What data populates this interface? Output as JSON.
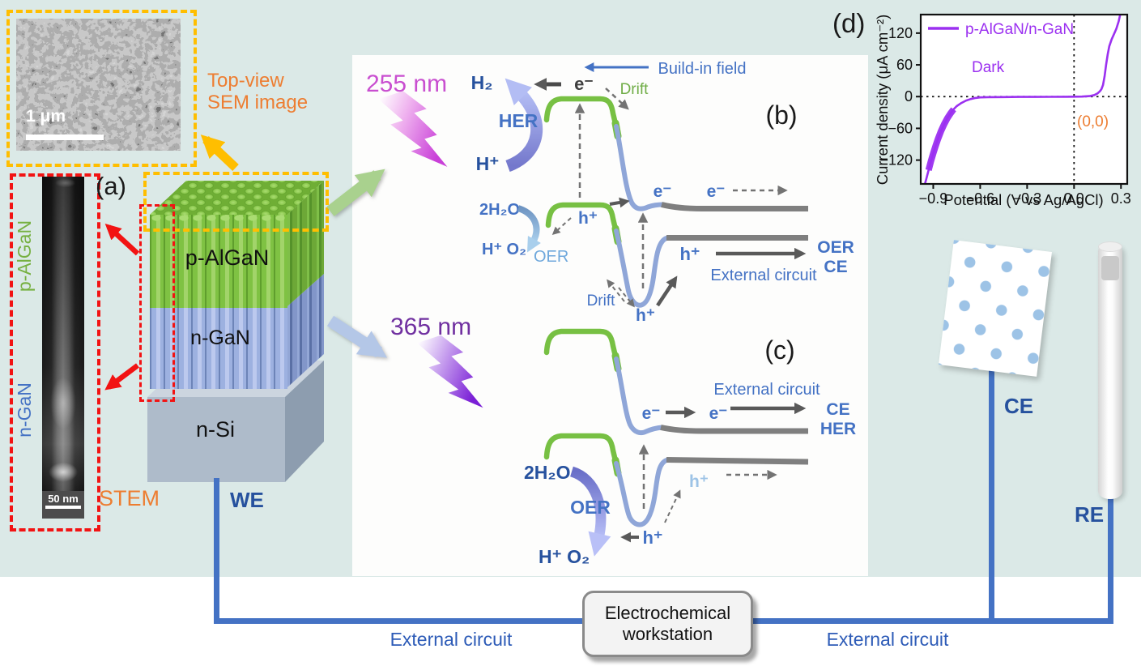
{
  "colors": {
    "background": "#dbe9e7",
    "accent_blue": "#4472c4",
    "dark_blue": "#26519e",
    "orange": "#ed7d31",
    "green_band": "#77c043",
    "blue_band": "#8fa6d8",
    "grey_band": "#7f7f7f",
    "magenta": "#c94fd0",
    "purple": "#7030a0",
    "curve_purple": "#9b30f0",
    "wire_blue": "#4472c4",
    "box_orange": "#ffbe00",
    "box_red": "#f21313"
  },
  "sem_inset": {
    "label_line1": "Top-view",
    "label_line2": "SEM image",
    "scale": "1 μm"
  },
  "stem_inset": {
    "label": "STEM",
    "layer_top": "p-AlGaN",
    "layer_bottom": "n-GaN",
    "scale": "50 nm"
  },
  "structure": {
    "panel_label": "(a)",
    "layer1": "p-AlGaN",
    "layer2": "n-GaN",
    "substrate": "n-Si",
    "electrode": "WE"
  },
  "symbols": {
    "electron": "e⁻",
    "hole": "h⁺",
    "h2": "H₂",
    "hplus": "H⁺",
    "water": "2H₂O",
    "h_o2": "H⁺  O₂"
  },
  "panel_b": {
    "label": "(b)",
    "wavelength": "255 nm",
    "her": "HER",
    "build_in_field": "Build-in field",
    "drift_top": "Drift",
    "drift_bottom": "Drift",
    "oer_small": "OER",
    "external_circuit": "External circuit",
    "oer_right": "OER",
    "ce_right": "CE"
  },
  "panel_c": {
    "label": "(c)",
    "wavelength": "365 nm",
    "oer": "OER",
    "external_circuit": "External circuit",
    "ce_right": "CE",
    "her_right": "HER"
  },
  "electrodes": {
    "counter": "CE",
    "reference": "RE"
  },
  "workstation_label": "Electrochemical workstation",
  "bottom": {
    "external_left": "External circuit",
    "external_right": "External circuit"
  },
  "chart_data": {
    "type": "line",
    "panel_label": "(d)",
    "xlabel": "Potential (V vs Ag/AgCl)",
    "ylabel": "Current density (μA cm⁻²)",
    "xlim": [
      -0.98,
      0.34
    ],
    "ylim": [
      -165,
      155
    ],
    "xticks": [
      -0.9,
      -0.6,
      -0.3,
      0.0,
      0.3
    ],
    "yticks": [
      120,
      60,
      0,
      -60,
      -120
    ],
    "zero_lines": true,
    "grid": false,
    "legend_position": "upper left",
    "annotation": "(0,0)",
    "annotation_color": "#ED7D31",
    "condition_label": "Dark",
    "legend": [
      {
        "label": "p-AlGaN/n-GaN",
        "color": "#9B30F0"
      }
    ],
    "series": [
      {
        "name": "p-AlGaN/n-GaN (Dark)",
        "color": "#9B30F0",
        "x": [
          -0.96,
          -0.945,
          -0.93,
          -0.915,
          -0.9,
          -0.885,
          -0.87,
          -0.85,
          -0.83,
          -0.81,
          -0.79,
          -0.77,
          -0.75,
          -0.72,
          -0.69,
          -0.66,
          -0.63,
          -0.6,
          -0.55,
          -0.45,
          -0.35,
          -0.25,
          -0.15,
          -0.05,
          0.05,
          0.1,
          0.13,
          0.15,
          0.165,
          0.175,
          0.185,
          0.195,
          0.205,
          0.215,
          0.225,
          0.24,
          0.255,
          0.27,
          0.285,
          0.295,
          0.305
        ],
        "y": [
          -172,
          -156,
          -139,
          -122,
          -107,
          -93,
          -80,
          -65,
          -52,
          -41,
          -32,
          -24,
          -18,
          -12,
          -7.5,
          -4.5,
          -2.5,
          -1.5,
          -1,
          -0.8,
          -0.6,
          -0.5,
          -0.4,
          -0.3,
          0,
          1,
          3,
          6,
          10,
          14,
          22,
          38,
          60,
          80,
          95,
          108,
          118,
          128,
          142,
          155,
          172
        ],
        "noise_x_range": [
          -0.93,
          -0.77
        ]
      }
    ]
  }
}
